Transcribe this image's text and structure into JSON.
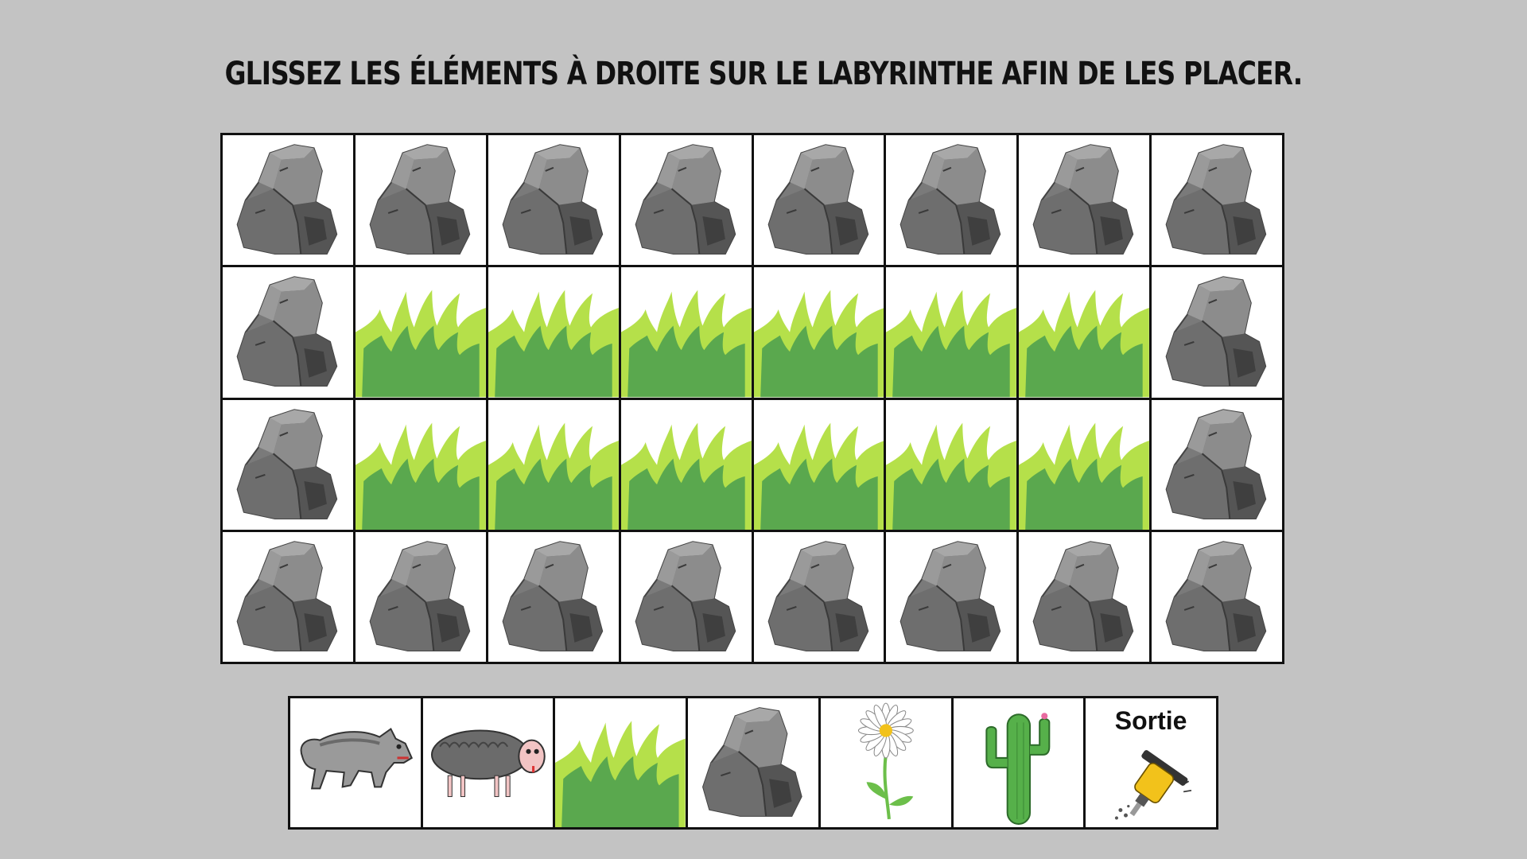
{
  "instruction": "Glissez les éléments à droite sur le labyrinthe afin de les placer.",
  "board": {
    "rows": [
      [
        "rock",
        "rock",
        "rock",
        "rock",
        "rock",
        "rock",
        "rock",
        "rock"
      ],
      [
        "rock",
        "grass",
        "grass",
        "grass",
        "grass",
        "grass",
        "grass",
        "rock"
      ],
      [
        "rock",
        "grass",
        "grass",
        "grass",
        "grass",
        "grass",
        "grass",
        "rock"
      ],
      [
        "rock",
        "rock",
        "rock",
        "rock",
        "rock",
        "rock",
        "rock",
        "rock"
      ]
    ]
  },
  "palette": {
    "items": [
      {
        "id": "wolf",
        "icon": "wolf-icon",
        "label": ""
      },
      {
        "id": "sheep",
        "icon": "sheep-icon",
        "label": ""
      },
      {
        "id": "grass",
        "icon": "grass-icon",
        "label": ""
      },
      {
        "id": "rock",
        "icon": "rock-icon",
        "label": ""
      },
      {
        "id": "flower",
        "icon": "daisy-icon",
        "label": ""
      },
      {
        "id": "cactus",
        "icon": "cactus-icon",
        "label": ""
      },
      {
        "id": "exit",
        "icon": "jackhammer-icon",
        "label": "Sortie"
      }
    ]
  },
  "colors": {
    "background": "#c3c3c3",
    "rock": "#7a7a7a",
    "rock_dark": "#555555",
    "grass_light": "#b5e04a",
    "grass_dark": "#5aa84e",
    "cactus": "#56b04a",
    "jackhammer": "#f2c21b"
  }
}
